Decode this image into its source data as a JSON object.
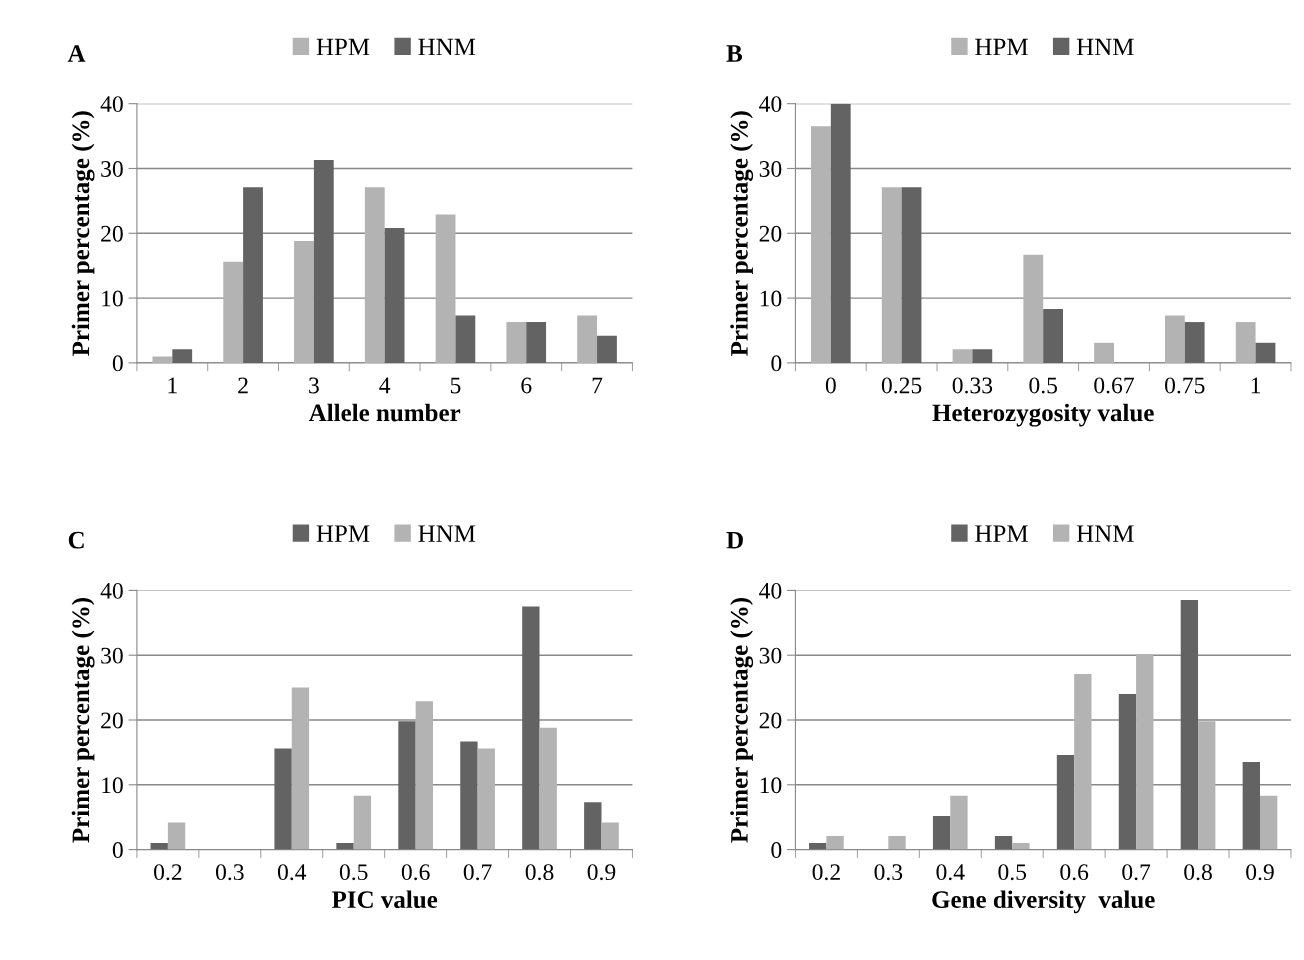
{
  "chart_data": [
    {
      "type": "bar",
      "title": "A",
      "xlabel": "Allele number",
      "ylabel": "Primer percentage (%)",
      "categories": [
        "1",
        "2",
        "3",
        "4",
        "5",
        "6",
        "7"
      ],
      "series": [
        {
          "name": "HPM",
          "color": "#b3b3b3",
          "values": [
            1.0,
            15.6,
            18.8,
            27.1,
            22.9,
            6.3,
            7.3
          ]
        },
        {
          "name": "HNM",
          "color": "#636363",
          "values": [
            2.1,
            27.1,
            31.3,
            20.8,
            7.3,
            6.3,
            4.2
          ]
        }
      ],
      "ylim": [
        0,
        40
      ],
      "yticks": [
        0,
        10,
        20,
        30,
        40
      ],
      "grid": "y",
      "legend": "top"
    },
    {
      "type": "bar",
      "title": "B",
      "xlabel": "Heterozygosity value",
      "ylabel": "Primer percentage (%)",
      "categories": [
        "0",
        "0.25",
        "0.33",
        "0.5",
        "0.67",
        "0.75",
        "1"
      ],
      "series": [
        {
          "name": "HPM",
          "color": "#b3b3b3",
          "values": [
            36.5,
            27.1,
            2.1,
            16.7,
            3.1,
            7.3,
            6.3
          ]
        },
        {
          "name": "HNM",
          "color": "#636363",
          "values": [
            40,
            27.1,
            2.1,
            8.3,
            0,
            6.3,
            3.1
          ]
        }
      ],
      "ylim": [
        0,
        40
      ],
      "yticks": [
        0,
        10,
        20,
        30,
        40
      ],
      "grid": "y",
      "legend": "top"
    },
    {
      "type": "bar",
      "title": "C",
      "xlabel": "PIC value",
      "ylabel": "Primer percentage (%)",
      "categories": [
        "0.2",
        "0.3",
        "0.4",
        "0.5",
        "0.6",
        "0.7",
        "0.8",
        "0.9"
      ],
      "series": [
        {
          "name": "HPM",
          "color": "#636363",
          "values": [
            1.0,
            0,
            15.6,
            1.0,
            19.8,
            16.7,
            37.5,
            7.3
          ]
        },
        {
          "name": "HNM",
          "color": "#b3b3b3",
          "values": [
            4.2,
            0,
            25.0,
            8.3,
            22.9,
            15.6,
            18.8,
            4.2
          ]
        }
      ],
      "ylim": [
        0,
        40
      ],
      "yticks": [
        0,
        10,
        20,
        30,
        40
      ],
      "grid": "y",
      "legend": "top"
    },
    {
      "type": "bar",
      "title": "D",
      "xlabel": "Gene diversity  value",
      "ylabel": "Primer percentage (%)",
      "categories": [
        "0.2",
        "0.3",
        "0.4",
        "0.5",
        "0.6",
        "0.7",
        "0.8",
        "0.9"
      ],
      "series": [
        {
          "name": "HPM",
          "color": "#636363",
          "values": [
            1.0,
            0,
            5.2,
            2.1,
            14.6,
            24.0,
            38.5,
            13.5
          ]
        },
        {
          "name": "HNM",
          "color": "#b3b3b3",
          "values": [
            2.1,
            2.1,
            8.3,
            1.0,
            27.1,
            30.2,
            19.8,
            8.3
          ]
        }
      ],
      "ylim": [
        0,
        40
      ],
      "yticks": [
        0,
        10,
        20,
        30,
        40
      ],
      "grid": "y",
      "legend": "top"
    }
  ]
}
